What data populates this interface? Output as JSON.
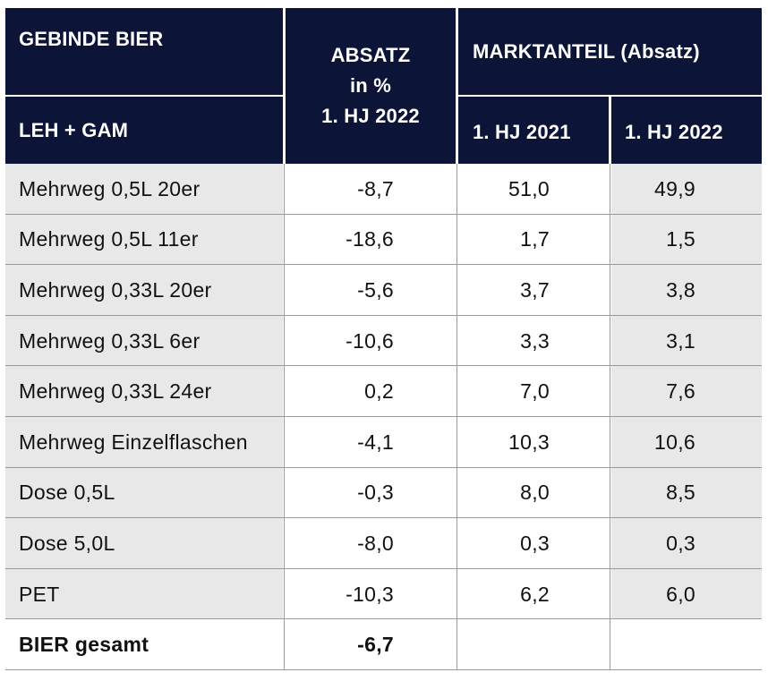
{
  "header": {
    "title": "GEBINDE BIER",
    "subtitle": "LEH + GAM",
    "absatz_line1": "ABSATZ",
    "absatz_line2": "in %",
    "absatz_line3": "1. HJ 2022",
    "marktanteil": "MARKTANTEIL (Absatz)",
    "col_2021": "1. HJ 2021",
    "col_2022": "1. HJ 2022"
  },
  "rows": [
    {
      "label": "Mehrweg 0,5L 20er",
      "absatz": "-8,7",
      "hj2021": "51,0",
      "hj2022": "49,9"
    },
    {
      "label": "Mehrweg 0,5L 11er",
      "absatz": "-18,6",
      "hj2021": "1,7",
      "hj2022": "1,5"
    },
    {
      "label": "Mehrweg 0,33L 20er",
      "absatz": "-5,6",
      "hj2021": "3,7",
      "hj2022": "3,8"
    },
    {
      "label": "Mehrweg 0,33L 6er",
      "absatz": "-10,6",
      "hj2021": "3,3",
      "hj2022": "3,1"
    },
    {
      "label": "Mehrweg 0,33L 24er",
      "absatz": "0,2",
      "hj2021": "7,0",
      "hj2022": "7,6"
    },
    {
      "label": "Mehrweg Einzelflaschen",
      "absatz": "-4,1",
      "hj2021": "10,3",
      "hj2022": "10,6"
    },
    {
      "label": "Dose 0,5L",
      "absatz": "-0,3",
      "hj2021": "8,0",
      "hj2022": "8,5"
    },
    {
      "label": "Dose 5,0L",
      "absatz": "-8,0",
      "hj2021": "0,3",
      "hj2022": "0,3"
    },
    {
      "label": "PET",
      "absatz": "-10,3",
      "hj2021": "6,2",
      "hj2022": "6,0"
    }
  ],
  "total": {
    "label": "BIER gesamt",
    "absatz": "-6,7",
    "hj2021": "",
    "hj2022": ""
  },
  "colors": {
    "header_bg": "#0c1538",
    "row_bg_light": "#e8e8e8",
    "row_bg_white": "#ffffff"
  }
}
